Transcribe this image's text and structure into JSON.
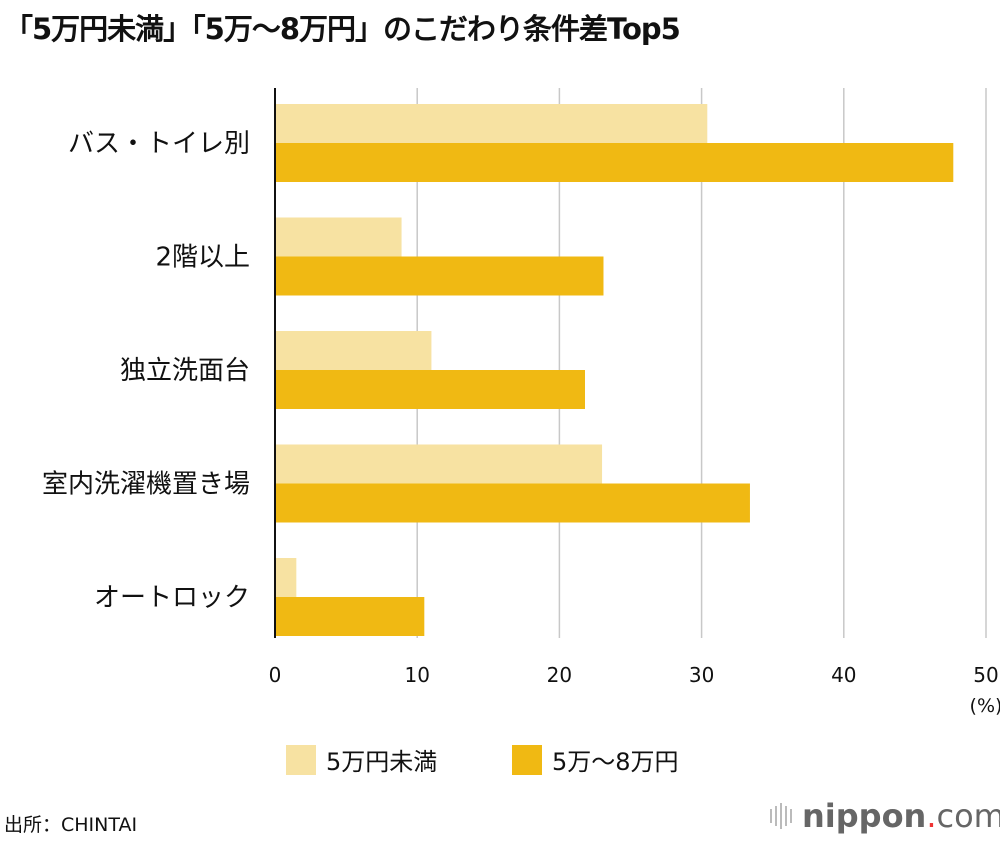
{
  "title": "「5万円未満」「5万〜8万円」のこだわり条件差Top5",
  "source": "出所：CHINTAI",
  "logo": {
    "main": "nippon",
    "dot": ".",
    "suffix": "com"
  },
  "chart_data": {
    "type": "bar",
    "orientation": "horizontal",
    "categories": [
      "バス・トイレ別",
      "2階以上",
      "独立洗面台",
      "室内洗濯機置き場",
      "オートロック"
    ],
    "series": [
      {
        "name": "5万円未満",
        "color": "#f7e2a2",
        "values": [
          30.4,
          8.9,
          11.0,
          23.0,
          1.5
        ]
      },
      {
        "name": "5万〜8万円",
        "color": "#f0b913",
        "values": [
          47.7,
          23.1,
          21.8,
          33.4,
          10.5
        ]
      }
    ],
    "xlim": [
      0,
      50
    ],
    "xticks": [
      "0",
      "10",
      "20",
      "30",
      "40",
      "50"
    ],
    "xunit": "(%)",
    "grid": true,
    "legend": "bottom"
  }
}
